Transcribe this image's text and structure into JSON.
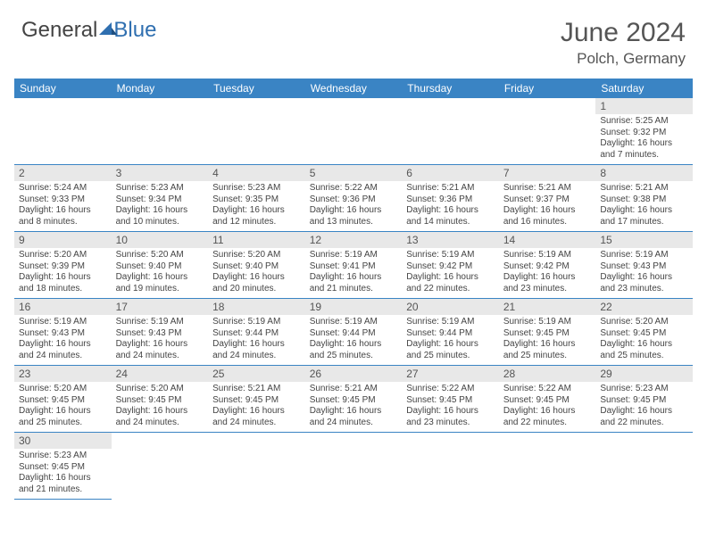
{
  "logo": {
    "part1": "General",
    "part2": "Blue"
  },
  "title": "June 2024",
  "location": "Polch, Germany",
  "colors": {
    "header_bg": "#3a84c4",
    "header_fg": "#ffffff",
    "daynum_bg": "#e8e8e8",
    "rule": "#3a84c4",
    "logo_blue": "#2f6fb0"
  },
  "weekdays": [
    "Sunday",
    "Monday",
    "Tuesday",
    "Wednesday",
    "Thursday",
    "Friday",
    "Saturday"
  ],
  "weeks": [
    [
      null,
      null,
      null,
      null,
      null,
      null,
      {
        "n": "1",
        "sr": "Sunrise: 5:25 AM",
        "ss": "Sunset: 9:32 PM",
        "dl1": "Daylight: 16 hours",
        "dl2": "and 7 minutes."
      }
    ],
    [
      {
        "n": "2",
        "sr": "Sunrise: 5:24 AM",
        "ss": "Sunset: 9:33 PM",
        "dl1": "Daylight: 16 hours",
        "dl2": "and 8 minutes."
      },
      {
        "n": "3",
        "sr": "Sunrise: 5:23 AM",
        "ss": "Sunset: 9:34 PM",
        "dl1": "Daylight: 16 hours",
        "dl2": "and 10 minutes."
      },
      {
        "n": "4",
        "sr": "Sunrise: 5:23 AM",
        "ss": "Sunset: 9:35 PM",
        "dl1": "Daylight: 16 hours",
        "dl2": "and 12 minutes."
      },
      {
        "n": "5",
        "sr": "Sunrise: 5:22 AM",
        "ss": "Sunset: 9:36 PM",
        "dl1": "Daylight: 16 hours",
        "dl2": "and 13 minutes."
      },
      {
        "n": "6",
        "sr": "Sunrise: 5:21 AM",
        "ss": "Sunset: 9:36 PM",
        "dl1": "Daylight: 16 hours",
        "dl2": "and 14 minutes."
      },
      {
        "n": "7",
        "sr": "Sunrise: 5:21 AM",
        "ss": "Sunset: 9:37 PM",
        "dl1": "Daylight: 16 hours",
        "dl2": "and 16 minutes."
      },
      {
        "n": "8",
        "sr": "Sunrise: 5:21 AM",
        "ss": "Sunset: 9:38 PM",
        "dl1": "Daylight: 16 hours",
        "dl2": "and 17 minutes."
      }
    ],
    [
      {
        "n": "9",
        "sr": "Sunrise: 5:20 AM",
        "ss": "Sunset: 9:39 PM",
        "dl1": "Daylight: 16 hours",
        "dl2": "and 18 minutes."
      },
      {
        "n": "10",
        "sr": "Sunrise: 5:20 AM",
        "ss": "Sunset: 9:40 PM",
        "dl1": "Daylight: 16 hours",
        "dl2": "and 19 minutes."
      },
      {
        "n": "11",
        "sr": "Sunrise: 5:20 AM",
        "ss": "Sunset: 9:40 PM",
        "dl1": "Daylight: 16 hours",
        "dl2": "and 20 minutes."
      },
      {
        "n": "12",
        "sr": "Sunrise: 5:19 AM",
        "ss": "Sunset: 9:41 PM",
        "dl1": "Daylight: 16 hours",
        "dl2": "and 21 minutes."
      },
      {
        "n": "13",
        "sr": "Sunrise: 5:19 AM",
        "ss": "Sunset: 9:42 PM",
        "dl1": "Daylight: 16 hours",
        "dl2": "and 22 minutes."
      },
      {
        "n": "14",
        "sr": "Sunrise: 5:19 AM",
        "ss": "Sunset: 9:42 PM",
        "dl1": "Daylight: 16 hours",
        "dl2": "and 23 minutes."
      },
      {
        "n": "15",
        "sr": "Sunrise: 5:19 AM",
        "ss": "Sunset: 9:43 PM",
        "dl1": "Daylight: 16 hours",
        "dl2": "and 23 minutes."
      }
    ],
    [
      {
        "n": "16",
        "sr": "Sunrise: 5:19 AM",
        "ss": "Sunset: 9:43 PM",
        "dl1": "Daylight: 16 hours",
        "dl2": "and 24 minutes."
      },
      {
        "n": "17",
        "sr": "Sunrise: 5:19 AM",
        "ss": "Sunset: 9:43 PM",
        "dl1": "Daylight: 16 hours",
        "dl2": "and 24 minutes."
      },
      {
        "n": "18",
        "sr": "Sunrise: 5:19 AM",
        "ss": "Sunset: 9:44 PM",
        "dl1": "Daylight: 16 hours",
        "dl2": "and 24 minutes."
      },
      {
        "n": "19",
        "sr": "Sunrise: 5:19 AM",
        "ss": "Sunset: 9:44 PM",
        "dl1": "Daylight: 16 hours",
        "dl2": "and 25 minutes."
      },
      {
        "n": "20",
        "sr": "Sunrise: 5:19 AM",
        "ss": "Sunset: 9:44 PM",
        "dl1": "Daylight: 16 hours",
        "dl2": "and 25 minutes."
      },
      {
        "n": "21",
        "sr": "Sunrise: 5:19 AM",
        "ss": "Sunset: 9:45 PM",
        "dl1": "Daylight: 16 hours",
        "dl2": "and 25 minutes."
      },
      {
        "n": "22",
        "sr": "Sunrise: 5:20 AM",
        "ss": "Sunset: 9:45 PM",
        "dl1": "Daylight: 16 hours",
        "dl2": "and 25 minutes."
      }
    ],
    [
      {
        "n": "23",
        "sr": "Sunrise: 5:20 AM",
        "ss": "Sunset: 9:45 PM",
        "dl1": "Daylight: 16 hours",
        "dl2": "and 25 minutes."
      },
      {
        "n": "24",
        "sr": "Sunrise: 5:20 AM",
        "ss": "Sunset: 9:45 PM",
        "dl1": "Daylight: 16 hours",
        "dl2": "and 24 minutes."
      },
      {
        "n": "25",
        "sr": "Sunrise: 5:21 AM",
        "ss": "Sunset: 9:45 PM",
        "dl1": "Daylight: 16 hours",
        "dl2": "and 24 minutes."
      },
      {
        "n": "26",
        "sr": "Sunrise: 5:21 AM",
        "ss": "Sunset: 9:45 PM",
        "dl1": "Daylight: 16 hours",
        "dl2": "and 24 minutes."
      },
      {
        "n": "27",
        "sr": "Sunrise: 5:22 AM",
        "ss": "Sunset: 9:45 PM",
        "dl1": "Daylight: 16 hours",
        "dl2": "and 23 minutes."
      },
      {
        "n": "28",
        "sr": "Sunrise: 5:22 AM",
        "ss": "Sunset: 9:45 PM",
        "dl1": "Daylight: 16 hours",
        "dl2": "and 22 minutes."
      },
      {
        "n": "29",
        "sr": "Sunrise: 5:23 AM",
        "ss": "Sunset: 9:45 PM",
        "dl1": "Daylight: 16 hours",
        "dl2": "and 22 minutes."
      }
    ],
    [
      {
        "n": "30",
        "sr": "Sunrise: 5:23 AM",
        "ss": "Sunset: 9:45 PM",
        "dl1": "Daylight: 16 hours",
        "dl2": "and 21 minutes."
      },
      null,
      null,
      null,
      null,
      null,
      null
    ]
  ]
}
